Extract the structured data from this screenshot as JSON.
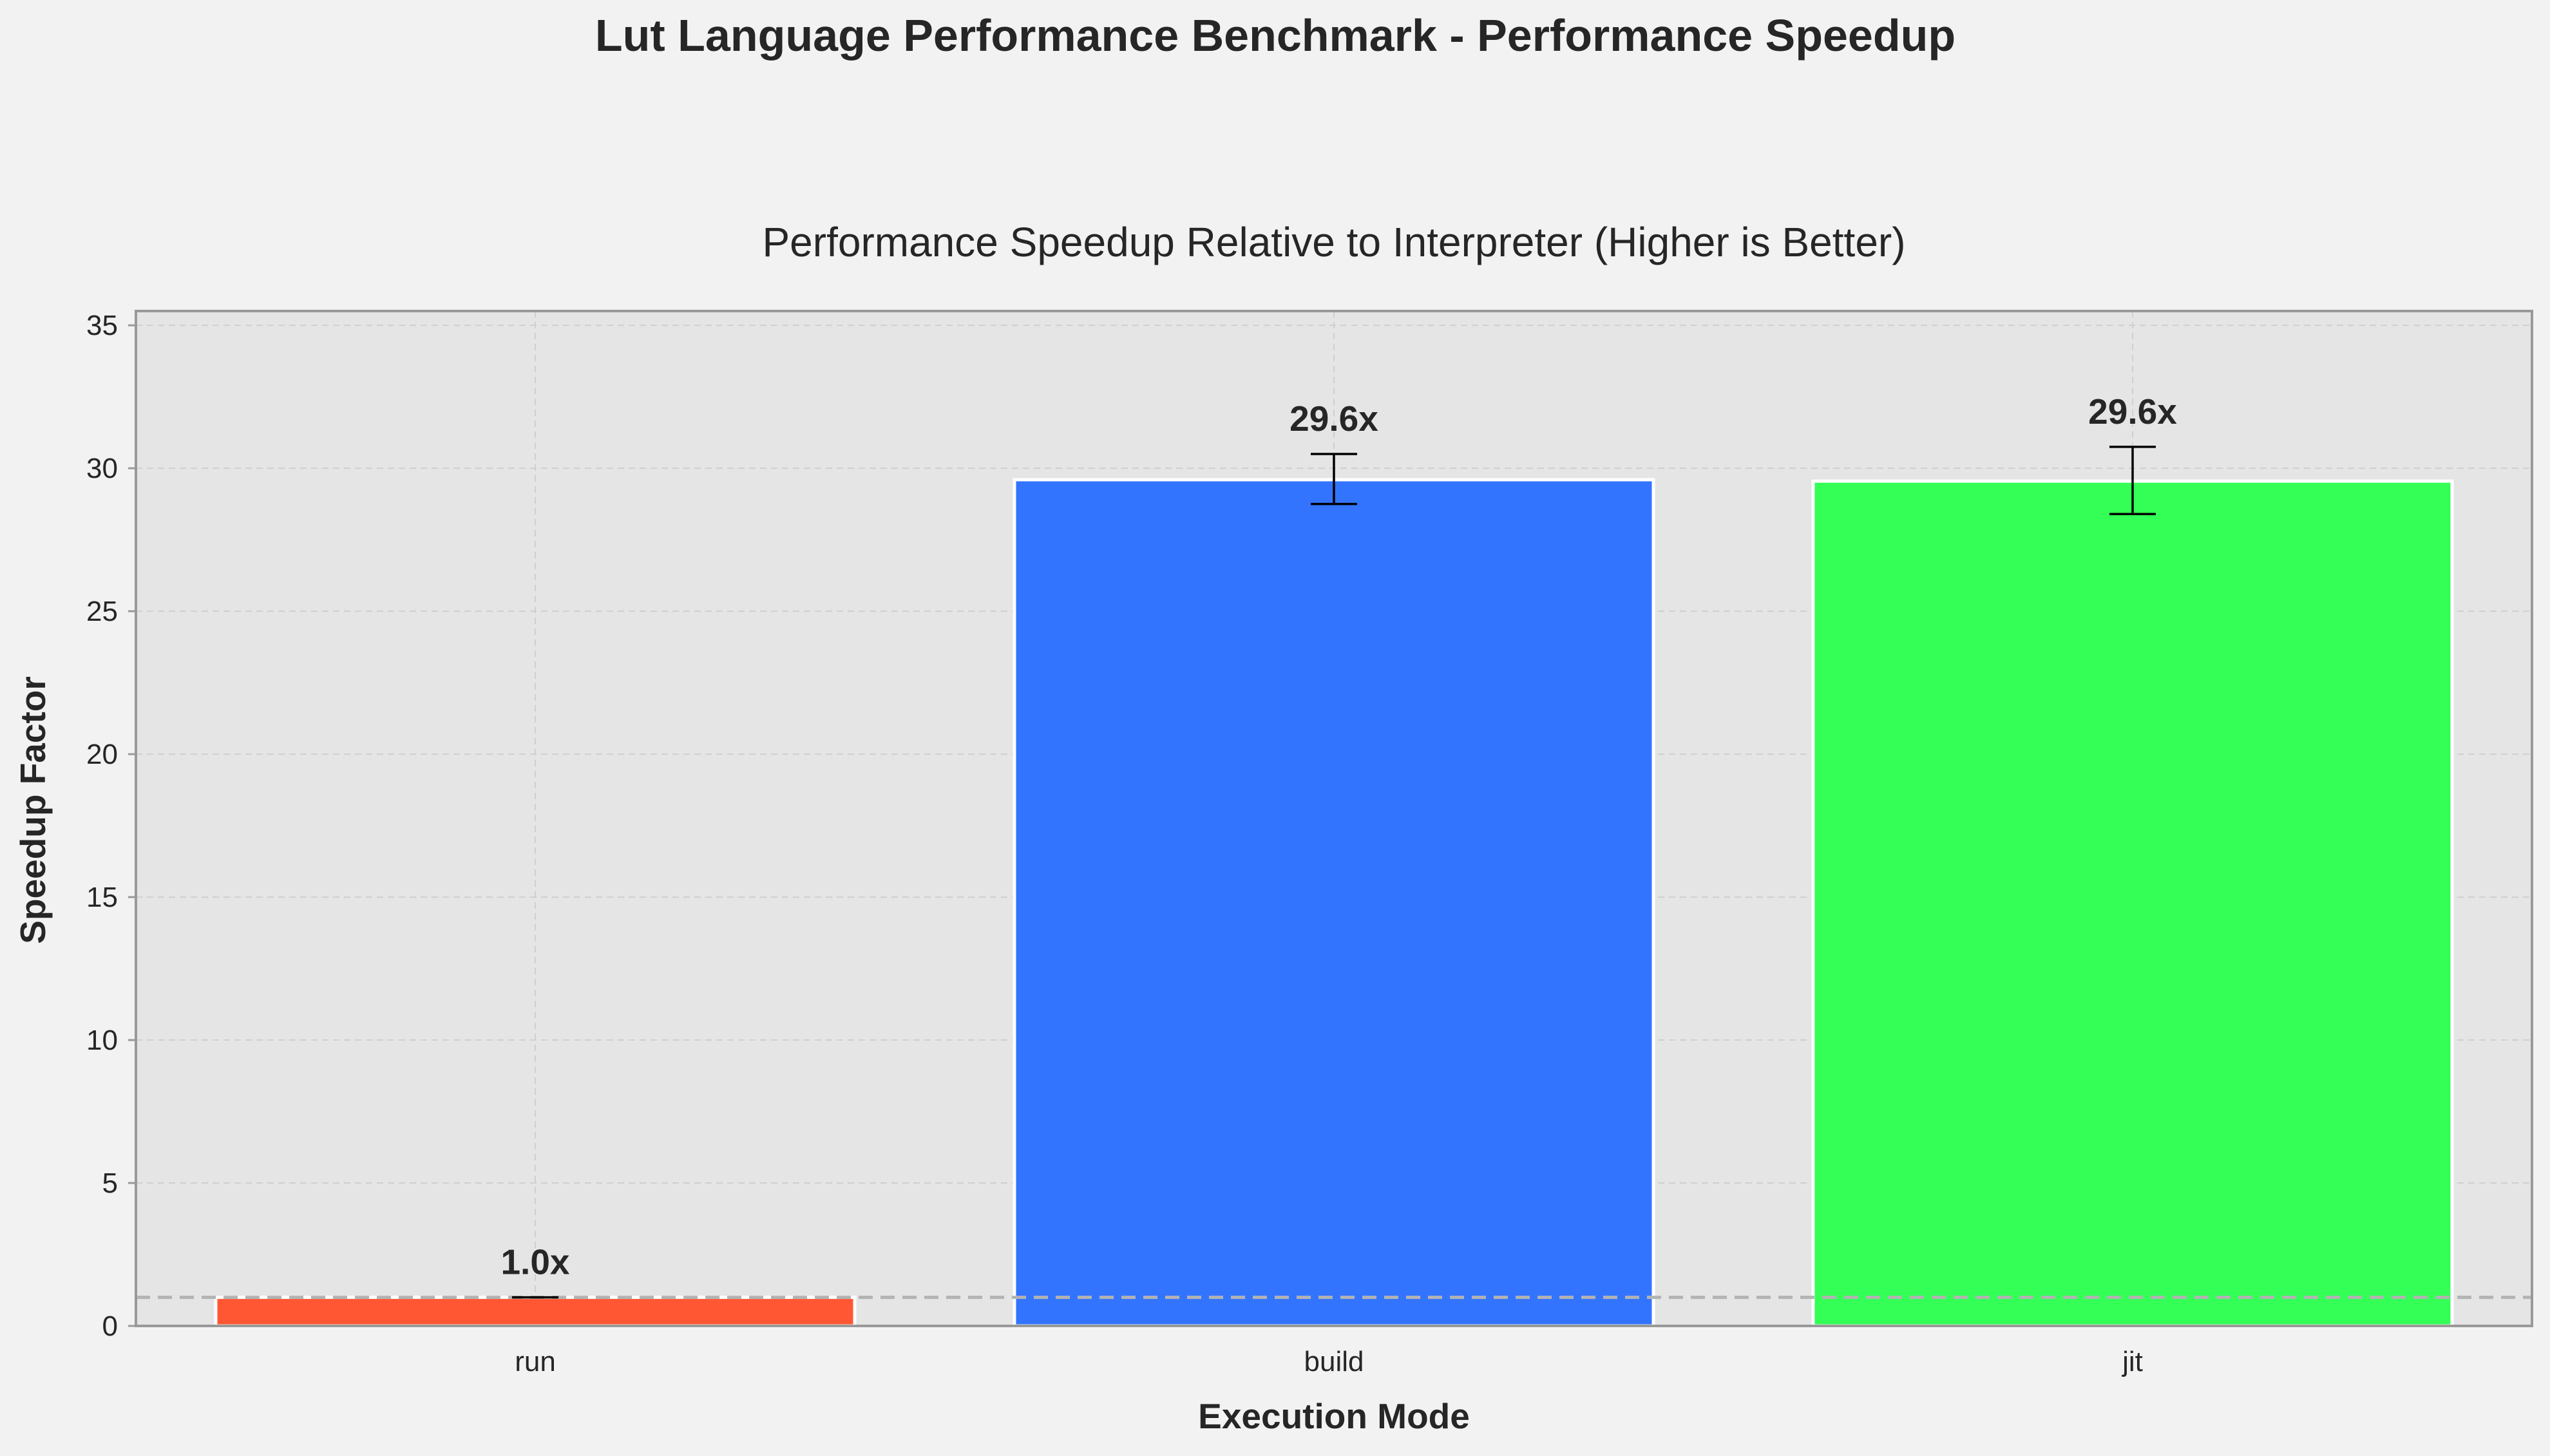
{
  "figure_title": "Lut Language Performance Benchmark - Performance Speedup",
  "chart_data": {
    "type": "bar",
    "title": "Performance Speedup Relative to Interpreter (Higher is Better)",
    "xlabel": "Execution Mode",
    "ylabel": "Speedup Factor",
    "categories": [
      "run",
      "build",
      "jit"
    ],
    "values": [
      1.0,
      29.6,
      29.55
    ],
    "error_bars": [
      {
        "low": 1.0,
        "high": 1.0
      },
      {
        "low": 28.75,
        "high": 30.5
      },
      {
        "low": 28.4,
        "high": 30.75
      }
    ],
    "data_labels": [
      "1.0x",
      "29.6x",
      "29.6x"
    ],
    "colors": [
      "#ff5733",
      "#3374ff",
      "#33ff57"
    ],
    "ylim": [
      0,
      35.5
    ],
    "yticks": [
      0,
      5,
      10,
      15,
      20,
      25,
      30,
      35
    ],
    "yticklabels": [
      "0",
      "5",
      "10",
      "15",
      "20",
      "25",
      "30",
      "35"
    ],
    "reference_line": {
      "y": 1.0,
      "style": "dashed",
      "color": "#b3b3b3"
    },
    "grid": true,
    "legend": "none",
    "plot_background": "#e5e5e5",
    "figure_background": "#f2f2f2"
  }
}
